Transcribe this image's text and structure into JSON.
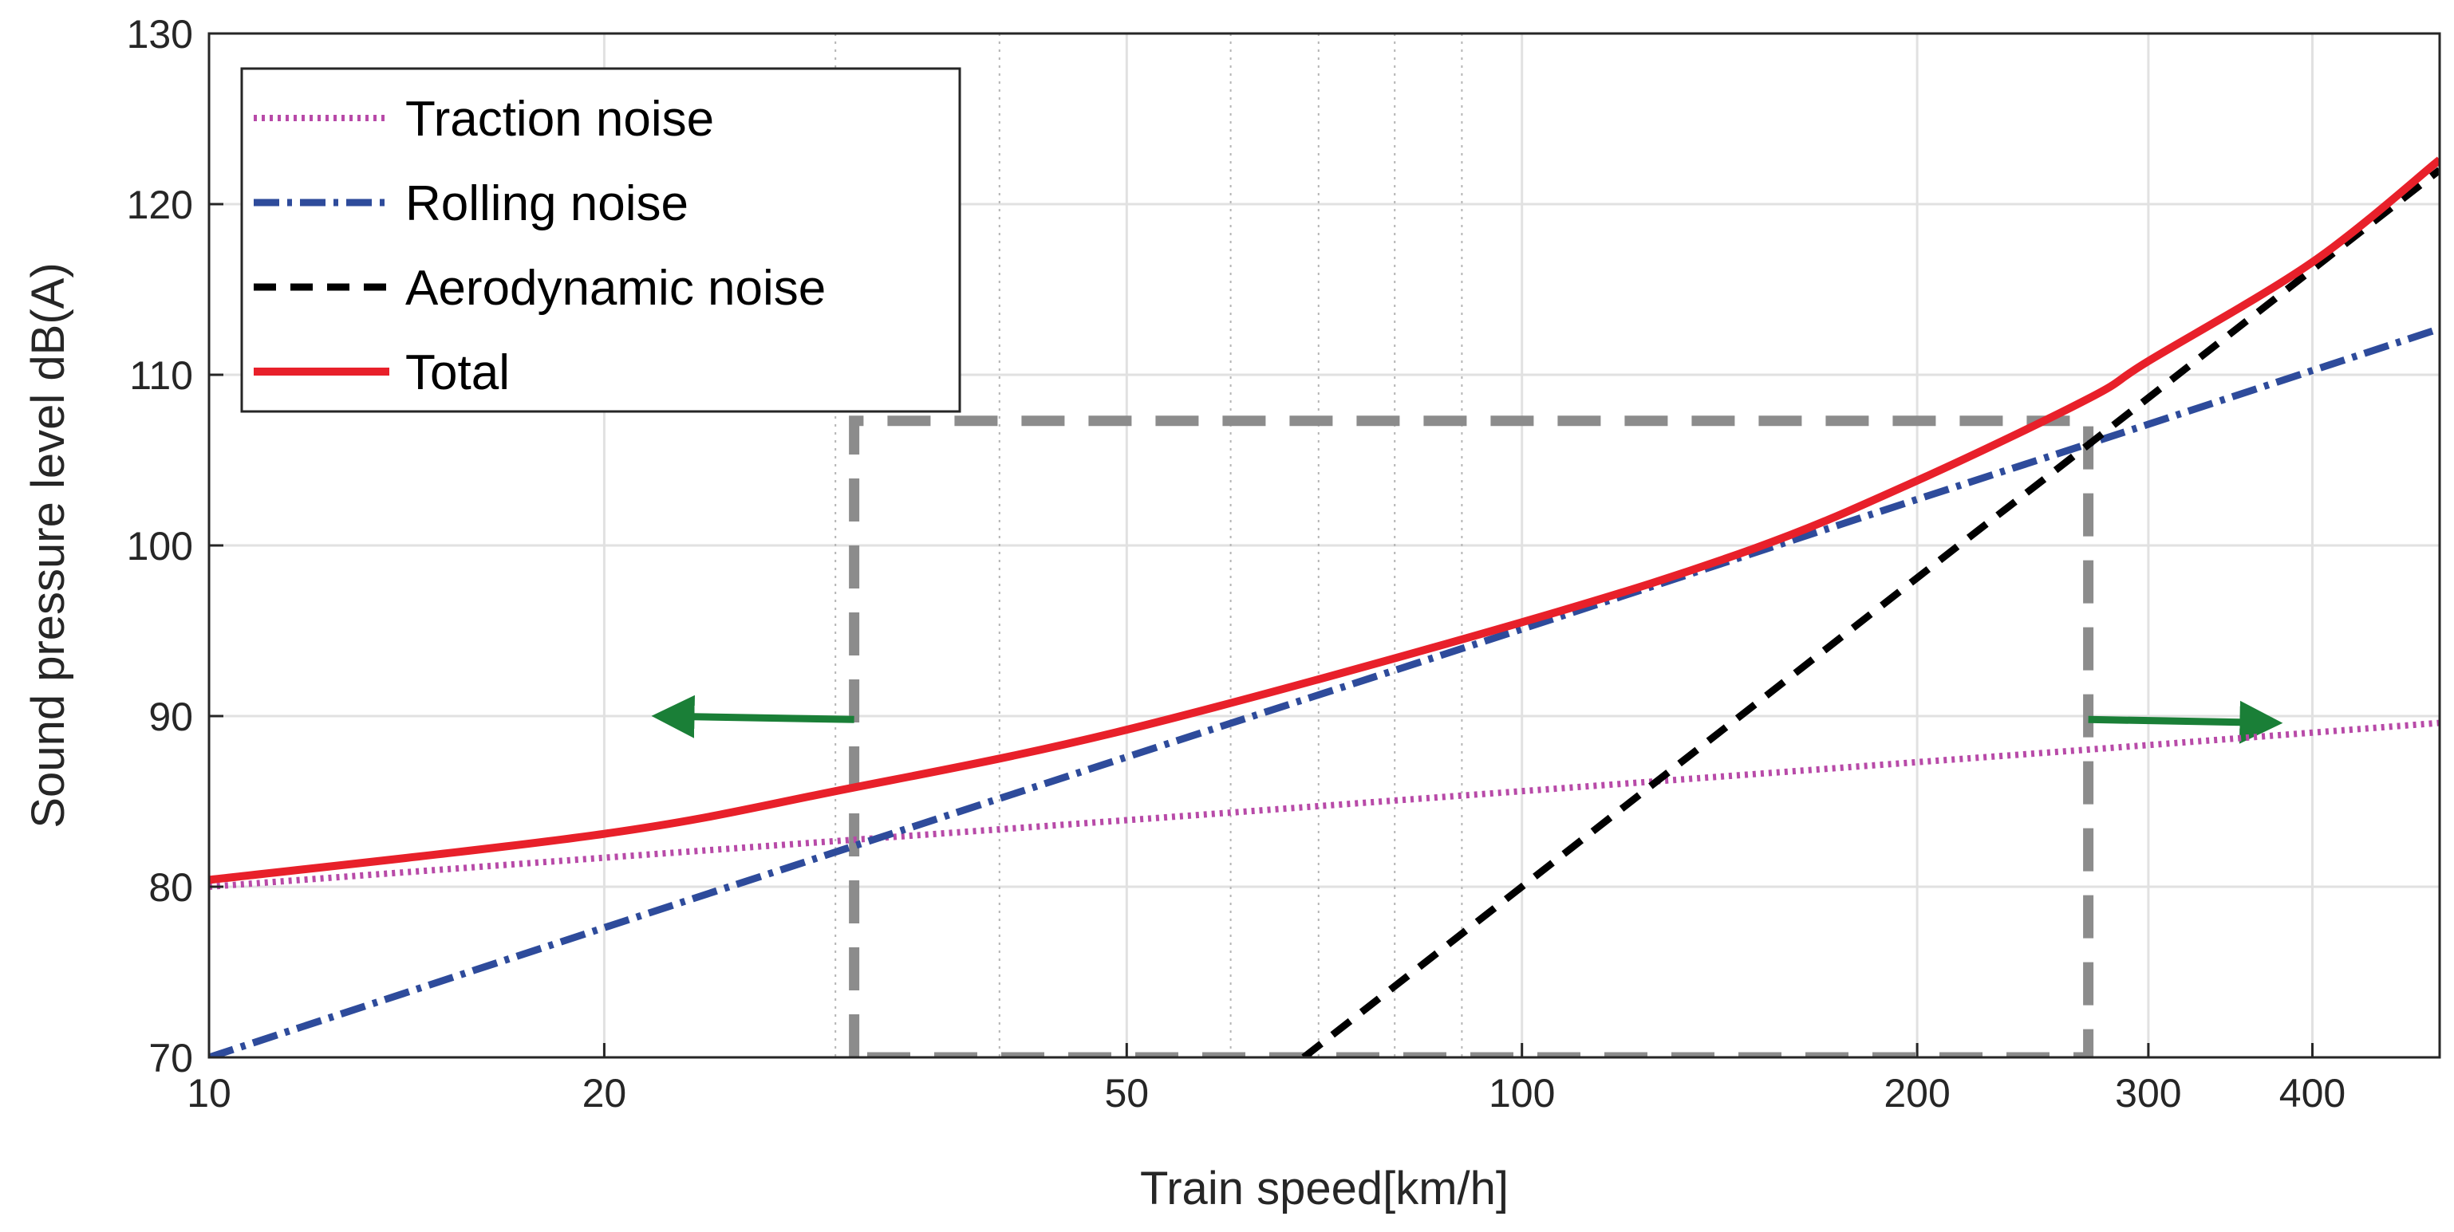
{
  "chart_data": {
    "type": "line",
    "xscale": "log",
    "xlabel": "Train speed[km/h]",
    "ylabel": "Sound pressure level dB(A)",
    "xlim": [
      10,
      500
    ],
    "ylim": [
      70,
      130
    ],
    "xticks": [
      10,
      20,
      50,
      100,
      200,
      300,
      400
    ],
    "xtick_labels": [
      "10",
      "20",
      "50",
      "100",
      "200",
      "300",
      "400"
    ],
    "yticks": [
      70,
      80,
      90,
      100,
      110,
      120,
      130
    ],
    "ytick_labels": [
      "70",
      "80",
      "90",
      "100",
      "110",
      "120",
      "130"
    ],
    "grid": true,
    "legend_position": "top-left",
    "minor_gridlines_x": [
      30,
      40,
      60,
      70,
      80,
      90
    ],
    "series": [
      {
        "name": "Traction noise",
        "style": "dotted",
        "color": "#b84aa8",
        "x": [
          10,
          20,
          50,
          100,
          200,
          300,
          500
        ],
        "y": [
          80.0,
          81.7,
          83.9,
          85.6,
          87.3,
          88.3,
          89.6
        ]
      },
      {
        "name": "Rolling noise",
        "style": "dashdot",
        "color": "#2e4b9b",
        "x": [
          10,
          20,
          50,
          100,
          200,
          300,
          500
        ],
        "y": [
          70.0,
          77.6,
          87.6,
          95.1,
          102.7,
          107.1,
          112.7
        ]
      },
      {
        "name": "Aerodynamic noise",
        "style": "dashed",
        "color": "#000000",
        "x": [
          68.2,
          100,
          200,
          270,
          500
        ],
        "y": [
          70.0,
          80.0,
          98.1,
          105.9,
          122.0
        ]
      },
      {
        "name": "Total",
        "style": "solid",
        "color": "#e8202a",
        "x": [
          10,
          20,
          30,
          50,
          100,
          150,
          200,
          270,
          300,
          400,
          500
        ],
        "y": [
          80.4,
          83.1,
          85.6,
          89.2,
          95.5,
          99.8,
          103.8,
          108.6,
          110.8,
          116.6,
          122.6
        ]
      }
    ],
    "annotations": {
      "region_box": {
        "x": [
          31,
          270
        ],
        "y": [
          70,
          107.3
        ],
        "color": "#8c8c8c",
        "style": "dashed"
      },
      "arrows": [
        {
          "from": [
            31,
            89.8
          ],
          "to": [
            22,
            90.0
          ],
          "color": "#1a7f37"
        },
        {
          "from": [
            270,
            89.8
          ],
          "to": [
            375,
            89.6
          ],
          "color": "#1a7f37"
        }
      ]
    }
  }
}
